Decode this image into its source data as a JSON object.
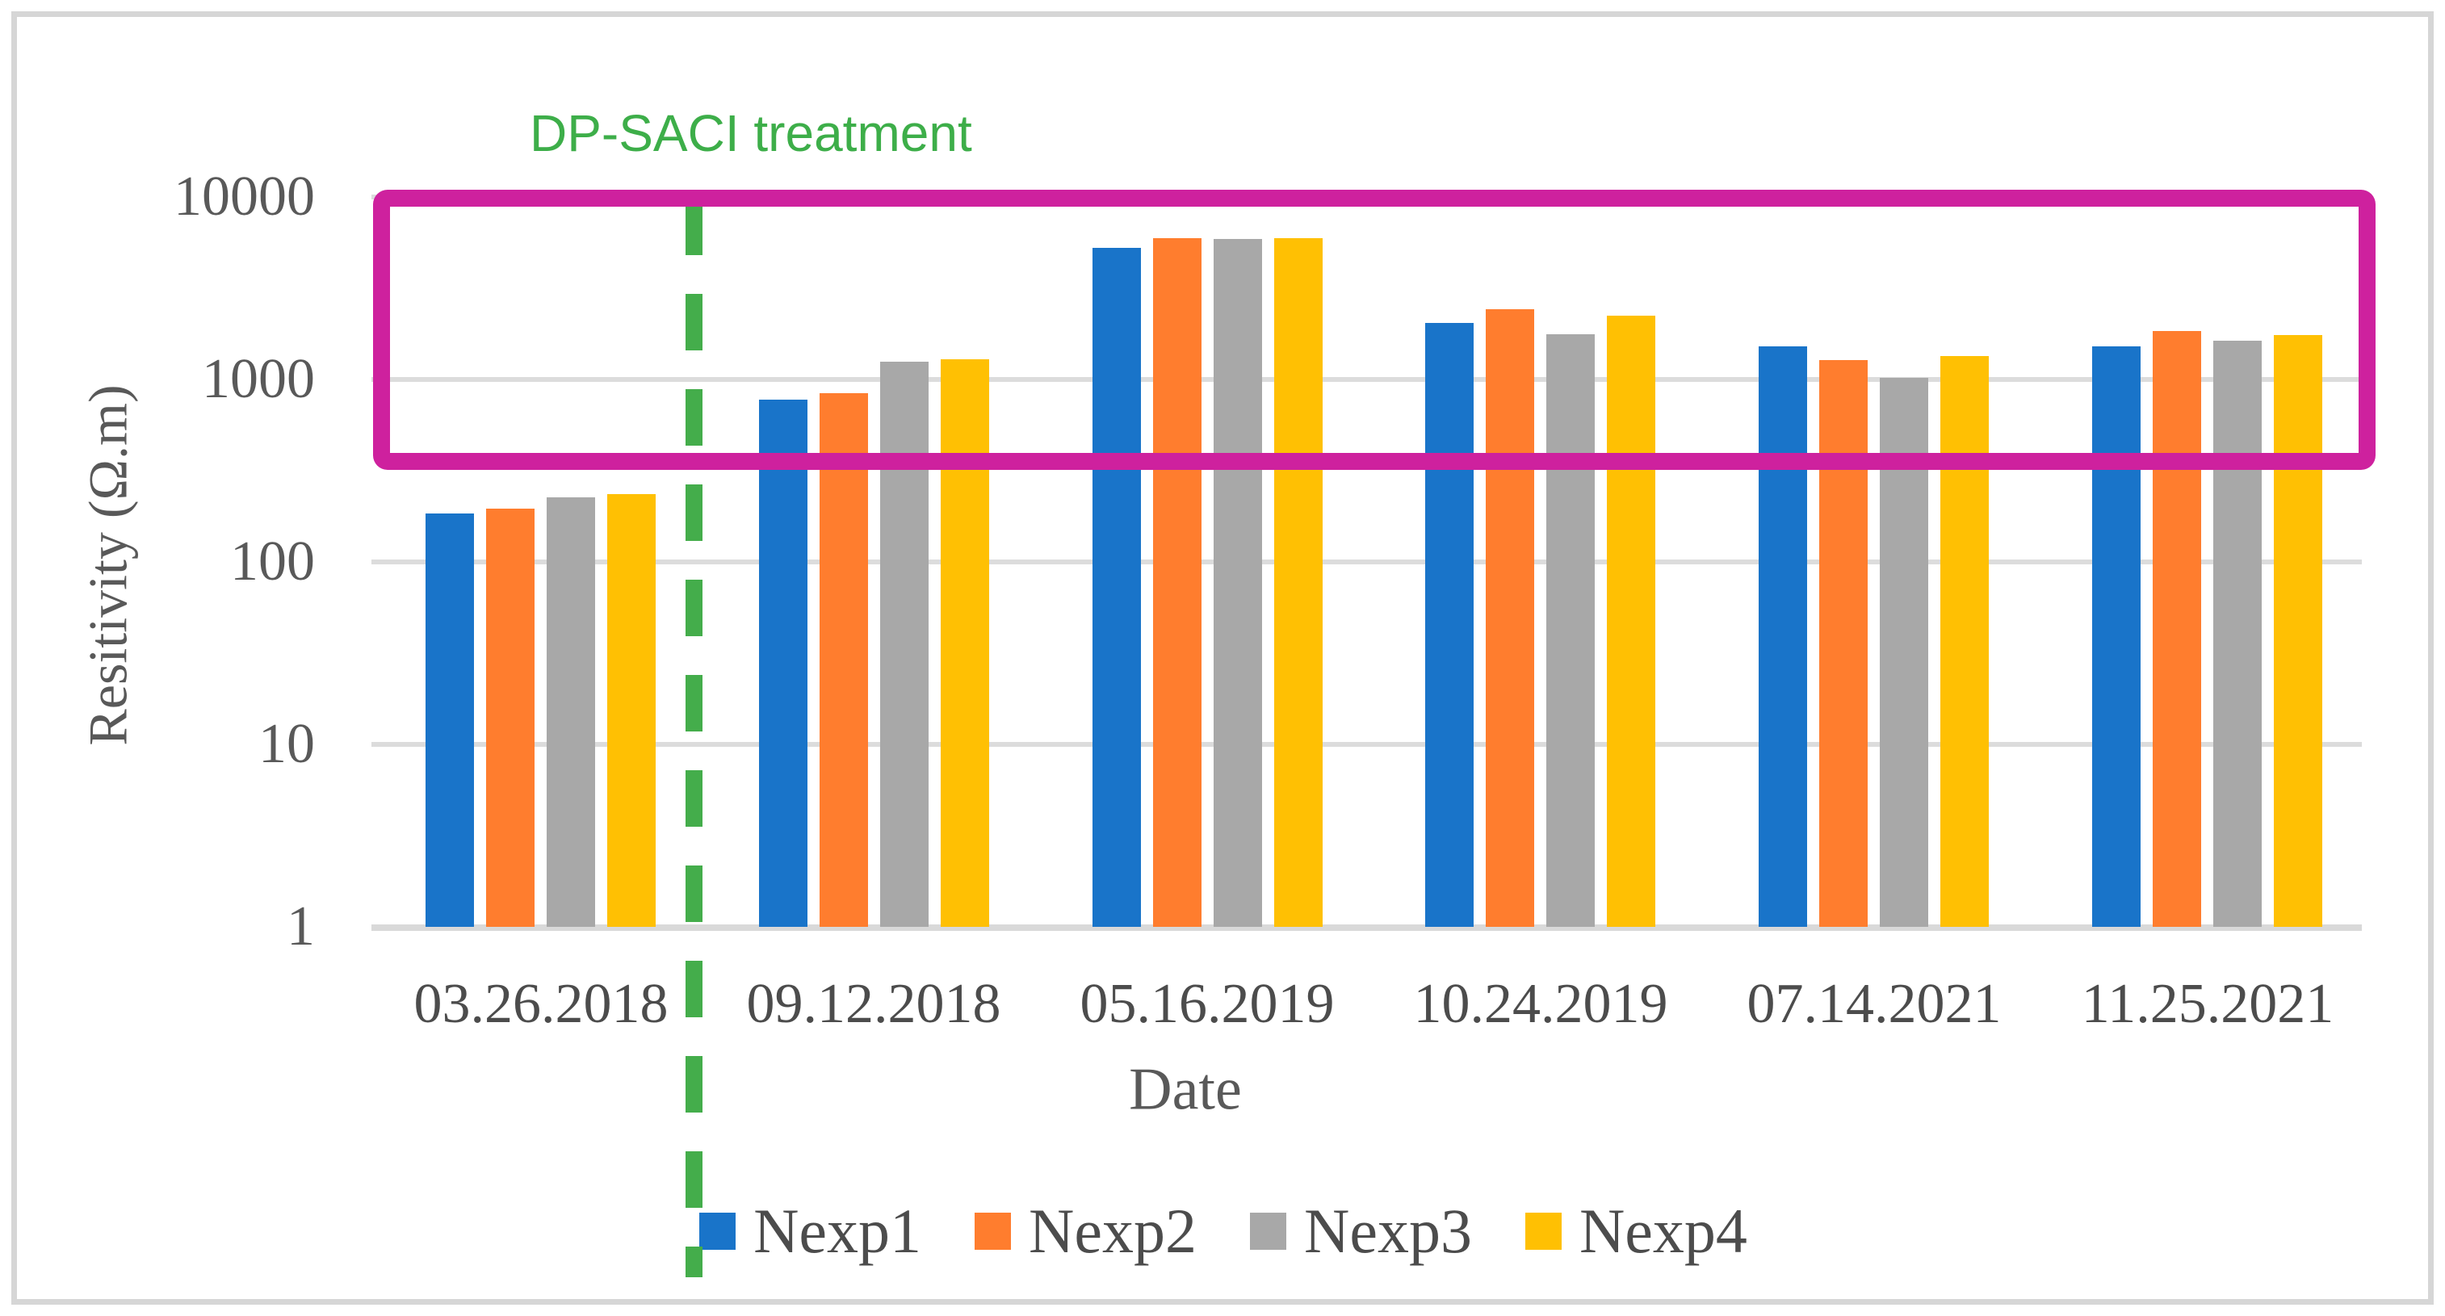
{
  "figure": {
    "annotation": "DP-SACI treatment",
    "y_axis_title": "Resitivity (Ω.m)",
    "x_axis_title": "Date",
    "colors": {
      "nexp1_blue": "#1974c9",
      "nexp2_orange": "#ff7d2e",
      "nexp3_gray": "#a8a8a8",
      "nexp4_yellow": "#ffc003",
      "highlight_box_magenta": "#ce219e",
      "treatment_green": "#44ad4b",
      "gridline_gray": "#dcdcdc",
      "text_gray": "#595959"
    }
  },
  "chart_data": {
    "type": "bar",
    "title": "",
    "xlabel": "Date",
    "ylabel": "Resitivity (Ω.m)",
    "y_scale": "log10",
    "ylim": [
      1,
      10000
    ],
    "y_ticks": [
      10000,
      1000,
      100,
      10,
      1
    ],
    "grid": true,
    "legend_position": "bottom",
    "categories": [
      "03.26.2018",
      "09.12.2018",
      "05.16.2019",
      "10.24.2019",
      "07.14.2021",
      "11.25.2021"
    ],
    "series": [
      {
        "name": "Nexp1",
        "color": "#1974c9",
        "values": [
          185,
          775,
          5250,
          2050,
          1520,
          1520
        ]
      },
      {
        "name": "Nexp2",
        "color": "#ff7d2e",
        "values": [
          195,
          845,
          5950,
          2430,
          1280,
          1840
        ]
      },
      {
        "name": "Nexp3",
        "color": "#a8a8a8",
        "values": [
          225,
          1250,
          5900,
          1770,
          1020,
          1630
        ]
      },
      {
        "name": "Nexp4",
        "color": "#ffc003",
        "values": [
          235,
          1290,
          5950,
          2240,
          1340,
          1750
        ]
      }
    ],
    "annotations": {
      "treatment_label": "DP-SACI treatment",
      "treatment_line_between": [
        "03.26.2018",
        "09.12.2018"
      ],
      "highlight_box_value_range": [
        350,
        10000
      ],
      "highlight_box_category_range": [
        "09.12.2018",
        "11.25.2021"
      ]
    }
  }
}
